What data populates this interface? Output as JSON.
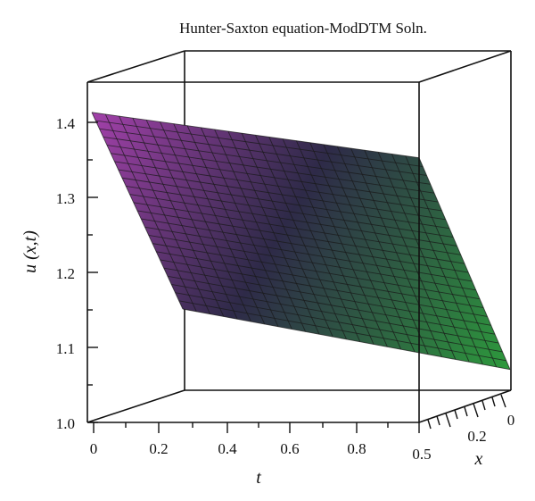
{
  "chart_data": {
    "type": "surface",
    "title": "Hunter-Saxton equation-ModDTM Soln.",
    "xlabel": "t",
    "ylabel": "u (x,t)",
    "zlabel": "x",
    "t_range": [
      0,
      0.5
    ],
    "x_range": [
      0,
      0.5
    ],
    "u_range": [
      1.0,
      1.45
    ],
    "t_ticks": [
      "0",
      "0.2",
      "0.4",
      "0.6",
      "0.8",
      "0.5"
    ],
    "x_ticks": [
      "0.2",
      "0"
    ],
    "u_ticks": [
      "1.0",
      "1.1",
      "1.2",
      "1.3",
      "1.4"
    ],
    "corners": [
      {
        "t": 0,
        "x": 0,
        "u": 1.41
      },
      {
        "t": 0.5,
        "x": 0,
        "u": 1.35
      },
      {
        "t": 0.5,
        "x": 0.5,
        "u": 1.07
      },
      {
        "t": 0,
        "x": 0.5,
        "u": 1.15
      }
    ],
    "mesh_lines": 24,
    "colors": {
      "high": "#a040a8",
      "mid_dark": "#2e2a48",
      "low": "#2d9a3c",
      "mesh": "#1a1a1a",
      "box": "#111111"
    }
  }
}
